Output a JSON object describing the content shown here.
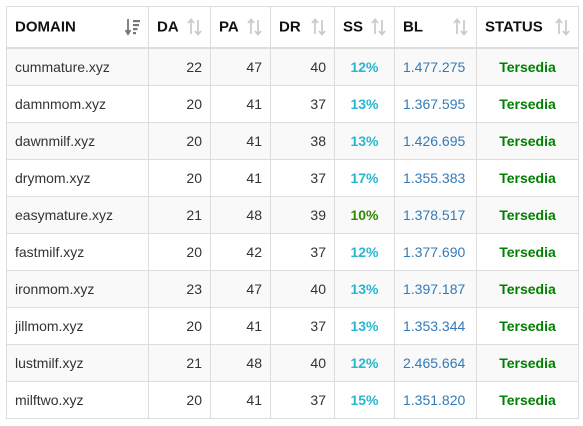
{
  "table": {
    "columns": [
      {
        "key": "domain",
        "label": "DOMAIN",
        "sort_icon": "sort-alpha-desc-icon",
        "sort_color": "#777777"
      },
      {
        "key": "da",
        "label": "DA",
        "sort_icon": "sort-both-icon",
        "sort_color": "#cccccc"
      },
      {
        "key": "pa",
        "label": "PA",
        "sort_icon": "sort-both-icon",
        "sort_color": "#cccccc"
      },
      {
        "key": "dr",
        "label": "DR",
        "sort_icon": "sort-both-icon",
        "sort_color": "#cccccc"
      },
      {
        "key": "ss",
        "label": "SS",
        "sort_icon": "sort-both-icon",
        "sort_color": "#cccccc"
      },
      {
        "key": "bl",
        "label": "BL",
        "sort_icon": "sort-both-icon",
        "sort_color": "#cccccc"
      },
      {
        "key": "status",
        "label": "STATUS",
        "sort_icon": "sort-both-icon",
        "sort_color": "#cccccc"
      }
    ],
    "rows": [
      {
        "domain": "cummature.xyz",
        "da": "22",
        "pa": "47",
        "dr": "40",
        "ss": "12%",
        "ss_color": "#29b6d0",
        "bl": "1.477.275",
        "status": "Tersedia"
      },
      {
        "domain": "damnmom.xyz",
        "da": "20",
        "pa": "41",
        "dr": "37",
        "ss": "13%",
        "ss_color": "#29b6d0",
        "bl": "1.367.595",
        "status": "Tersedia"
      },
      {
        "domain": "dawnmilf.xyz",
        "da": "20",
        "pa": "41",
        "dr": "38",
        "ss": "13%",
        "ss_color": "#29b6d0",
        "bl": "1.426.695",
        "status": "Tersedia"
      },
      {
        "domain": "drymom.xyz",
        "da": "20",
        "pa": "41",
        "dr": "37",
        "ss": "17%",
        "ss_color": "#29b6d0",
        "bl": "1.355.383",
        "status": "Tersedia"
      },
      {
        "domain": "easymature.xyz",
        "da": "21",
        "pa": "48",
        "dr": "39",
        "ss": "10%",
        "ss_color": "#2e8b00",
        "bl": "1.378.517",
        "status": "Tersedia"
      },
      {
        "domain": "fastmilf.xyz",
        "da": "20",
        "pa": "42",
        "dr": "37",
        "ss": "12%",
        "ss_color": "#29b6d0",
        "bl": "1.377.690",
        "status": "Tersedia"
      },
      {
        "domain": "ironmom.xyz",
        "da": "23",
        "pa": "47",
        "dr": "40",
        "ss": "13%",
        "ss_color": "#29b6d0",
        "bl": "1.397.187",
        "status": "Tersedia"
      },
      {
        "domain": "jillmom.xyz",
        "da": "20",
        "pa": "41",
        "dr": "37",
        "ss": "13%",
        "ss_color": "#29b6d0",
        "bl": "1.353.344",
        "status": "Tersedia"
      },
      {
        "domain": "lustmilf.xyz",
        "da": "21",
        "pa": "48",
        "dr": "40",
        "ss": "12%",
        "ss_color": "#29b6d0",
        "bl": "2.465.664",
        "status": "Tersedia"
      },
      {
        "domain": "milftwo.xyz",
        "da": "20",
        "pa": "41",
        "dr": "37",
        "ss": "15%",
        "ss_color": "#29b6d0",
        "bl": "1.351.820",
        "status": "Tersedia"
      }
    ]
  }
}
